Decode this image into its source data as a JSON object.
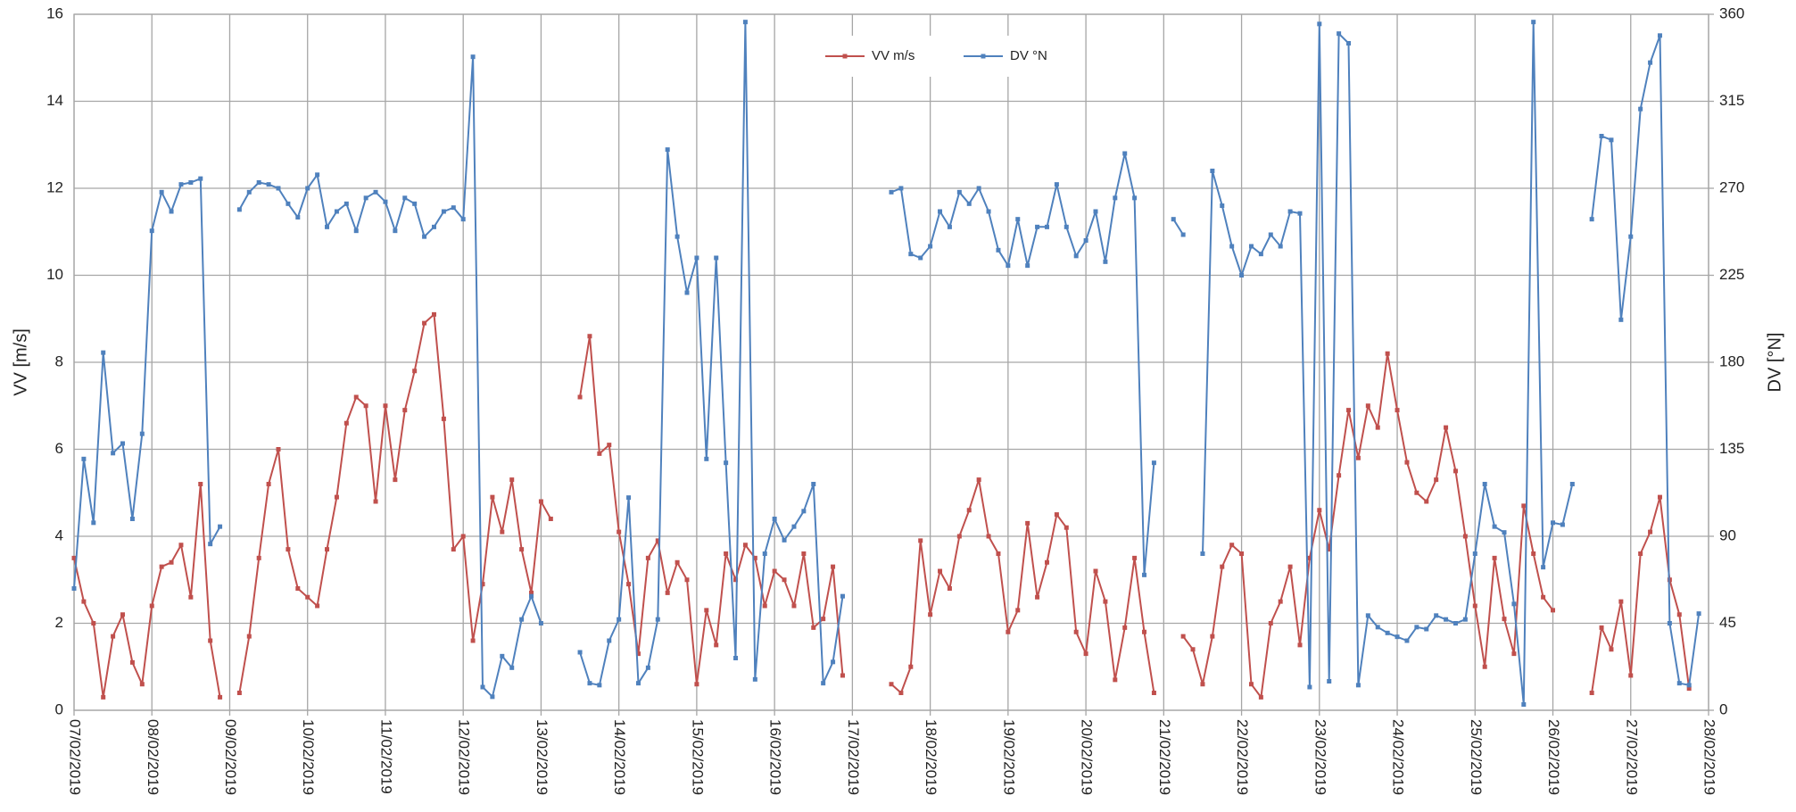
{
  "chart_data": {
    "type": "line",
    "y_label": "VV [m/s]",
    "y2_label": "DV [°N]",
    "xlim": [
      0,
      21
    ],
    "ylim": [
      0,
      16
    ],
    "y2lim": [
      0,
      360
    ],
    "xticks": [
      {
        "value": 0,
        "label": "07/02/2019"
      },
      {
        "value": 1,
        "label": "08/02/2019"
      },
      {
        "value": 2,
        "label": "09/02/2019"
      },
      {
        "value": 3,
        "label": "10/02/2019"
      },
      {
        "value": 4,
        "label": "11/02/2019"
      },
      {
        "value": 5,
        "label": "12/02/2019"
      },
      {
        "value": 6,
        "label": "13/02/2019"
      },
      {
        "value": 7,
        "label": "14/02/2019"
      },
      {
        "value": 8,
        "label": "15/02/2019"
      },
      {
        "value": 9,
        "label": "16/02/2019"
      },
      {
        "value": 10,
        "label": "17/02/2019"
      },
      {
        "value": 11,
        "label": "18/02/2019"
      },
      {
        "value": 12,
        "label": "19/02/2019"
      },
      {
        "value": 13,
        "label": "20/02/2019"
      },
      {
        "value": 14,
        "label": "21/02/2019"
      },
      {
        "value": 15,
        "label": "22/02/2019"
      },
      {
        "value": 16,
        "label": "23/02/2019"
      },
      {
        "value": 17,
        "label": "24/02/2019"
      },
      {
        "value": 18,
        "label": "25/02/2019"
      },
      {
        "value": 19,
        "label": "26/02/2019"
      },
      {
        "value": 20,
        "label": "27/02/2019"
      },
      {
        "value": 21,
        "label": "28/02/2019"
      }
    ],
    "yticks": [
      0,
      2,
      4,
      6,
      8,
      10,
      12,
      14,
      16
    ],
    "y2ticks": [
      0,
      45,
      90,
      135,
      180,
      225,
      270,
      315,
      360
    ],
    "grid": true,
    "legend": "top",
    "x": [
      0,
      0.125,
      0.25,
      0.375,
      0.5,
      0.625,
      0.75,
      0.875,
      1,
      1.125,
      1.25,
      1.375,
      1.5,
      1.625,
      1.75,
      1.875,
      2,
      2.125,
      2.25,
      2.375,
      2.5,
      2.625,
      2.75,
      2.875,
      3,
      3.125,
      3.25,
      3.375,
      3.5,
      3.625,
      3.75,
      3.875,
      4,
      4.125,
      4.25,
      4.375,
      4.5,
      4.625,
      4.75,
      4.875,
      5,
      5.125,
      5.25,
      5.375,
      5.5,
      5.625,
      5.75,
      5.875,
      6,
      6.125,
      6.25,
      6.375,
      6.5,
      6.625,
      6.75,
      6.875,
      7,
      7.125,
      7.25,
      7.375,
      7.5,
      7.625,
      7.75,
      7.875,
      8,
      8.125,
      8.25,
      8.375,
      8.5,
      8.625,
      8.75,
      8.875,
      9,
      9.125,
      9.25,
      9.375,
      9.5,
      9.625,
      9.75,
      9.875,
      10,
      10.125,
      10.25,
      10.375,
      10.5,
      10.625,
      10.75,
      10.875,
      11,
      11.125,
      11.25,
      11.375,
      11.5,
      11.625,
      11.75,
      11.875,
      12,
      12.125,
      12.25,
      12.375,
      12.5,
      12.625,
      12.75,
      12.875,
      13,
      13.125,
      13.25,
      13.375,
      13.5,
      13.625,
      13.75,
      13.875,
      14,
      14.125,
      14.25,
      14.375,
      14.5,
      14.625,
      14.75,
      14.875,
      15,
      15.125,
      15.25,
      15.375,
      15.5,
      15.625,
      15.75,
      15.875,
      16,
      16.125,
      16.25,
      16.375,
      16.5,
      16.625,
      16.75,
      16.875,
      17,
      17.125,
      17.25,
      17.375,
      17.5,
      17.625,
      17.75,
      17.875,
      18,
      18.125,
      18.25,
      18.375,
      18.5,
      18.625,
      18.75,
      18.875,
      19,
      19.125,
      19.25,
      19.375,
      19.5,
      19.625,
      19.75,
      19.875,
      20,
      20.125,
      20.25,
      20.375,
      20.5,
      20.625,
      20.75,
      20.875
    ],
    "series": [
      {
        "name": "VV m/s",
        "color": "#c0504d",
        "values": [
          3.5,
          2.5,
          2.0,
          0.3,
          1.7,
          2.2,
          1.1,
          0.6,
          2.4,
          3.3,
          3.4,
          3.8,
          2.6,
          5.2,
          1.6,
          0.3,
          null,
          0.4,
          1.7,
          3.5,
          5.2,
          6.0,
          3.7,
          2.8,
          2.6,
          2.4,
          3.7,
          4.9,
          6.6,
          7.2,
          7.0,
          4.8,
          7.0,
          5.3,
          6.9,
          7.8,
          8.9,
          9.1,
          6.7,
          3.7,
          4.0,
          1.6,
          2.9,
          4.9,
          4.1,
          5.3,
          3.7,
          2.7,
          4.8,
          4.4,
          null,
          null,
          7.2,
          8.6,
          5.9,
          6.1,
          4.1,
          2.9,
          1.3,
          3.5,
          3.9,
          2.7,
          3.4,
          3.0,
          0.6,
          2.3,
          1.5,
          3.6,
          3.0,
          3.8,
          3.5,
          2.4,
          3.2,
          3.0,
          2.4,
          3.6,
          1.9,
          2.1,
          3.3,
          0.8,
          null,
          null,
          null,
          null,
          0.6,
          0.4,
          1.0,
          3.9,
          2.2,
          3.2,
          2.8,
          4.0,
          4.6,
          5.3,
          4.0,
          3.6,
          1.8,
          2.3,
          4.3,
          2.6,
          3.4,
          4.5,
          4.2,
          1.8,
          1.3,
          3.2,
          2.5,
          0.7,
          1.9,
          3.5,
          1.8,
          0.4,
          null,
          null,
          1.7,
          1.4,
          0.6,
          1.7,
          3.3,
          3.8,
          3.6,
          0.6,
          0.3,
          2.0,
          2.5,
          3.3,
          1.5,
          3.5,
          4.6,
          3.7,
          5.4,
          6.9,
          5.8,
          7.0,
          6.5,
          8.2,
          6.9,
          5.7,
          5.0,
          4.8,
          5.3,
          6.5,
          5.5,
          4.0,
          2.4,
          1.0,
          3.5,
          2.1,
          1.3,
          4.7,
          3.6,
          2.6,
          2.3,
          null,
          null,
          null,
          0.4,
          1.9,
          1.4,
          2.5,
          0.8,
          3.6,
          4.1,
          4.9,
          3.0,
          2.2,
          0.5,
          null
        ]
      },
      {
        "name": "DV °N",
        "color": "#4f81bd",
        "axis": "y2",
        "values": [
          63,
          130,
          97,
          185,
          133,
          138,
          99,
          143,
          248,
          268,
          258,
          272,
          273,
          275,
          86,
          95,
          null,
          259,
          268,
          273,
          272,
          270,
          262,
          255,
          270,
          277,
          250,
          258,
          262,
          248,
          265,
          268,
          263,
          248,
          265,
          262,
          245,
          250,
          258,
          260,
          254,
          338,
          12,
          7,
          28,
          22,
          47,
          59,
          45,
          null,
          null,
          null,
          30,
          14,
          13,
          36,
          47,
          110,
          14,
          22,
          47,
          290,
          245,
          216,
          234,
          130,
          234,
          128,
          27,
          356,
          16,
          81,
          99,
          88,
          95,
          103,
          117,
          14,
          25,
          59,
          null,
          null,
          null,
          null,
          268,
          270,
          236,
          234,
          240,
          258,
          250,
          268,
          262,
          270,
          258,
          238,
          230,
          254,
          230,
          250,
          250,
          272,
          250,
          235,
          243,
          258,
          232,
          265,
          288,
          265,
          70,
          128,
          null,
          254,
          246,
          null,
          81,
          279,
          261,
          240,
          225,
          240,
          236,
          246,
          240,
          258,
          257,
          12,
          355,
          15,
          350,
          345,
          13,
          49,
          43,
          40,
          38,
          36,
          43,
          42,
          49,
          47,
          45,
          47,
          81,
          117,
          95,
          92,
          55,
          3,
          356,
          74,
          97,
          96,
          117,
          null,
          254,
          297,
          295,
          202,
          245,
          311,
          335,
          349,
          45,
          14,
          13,
          50
        ]
      }
    ]
  }
}
